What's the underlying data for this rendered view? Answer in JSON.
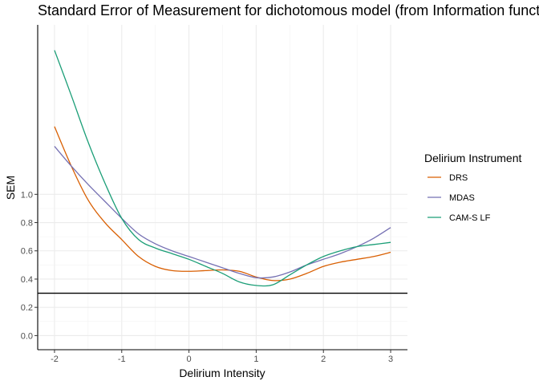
{
  "chart_data": {
    "type": "line",
    "title": "Standard Error of Measurement for dichotomous model (from Information function)",
    "xlabel": "Delirium Intensity",
    "ylabel": "SEM",
    "xlim": [
      -2.25,
      3.25
    ],
    "ylim": [
      -0.1,
      2.2
    ],
    "xticks": [
      -2,
      -1,
      0,
      1,
      2,
      3
    ],
    "xtick_labels": [
      "-2",
      "-1",
      "0",
      "1",
      "2",
      "3"
    ],
    "yticks": [
      0.0,
      0.2,
      0.4,
      0.6,
      0.8,
      1.0
    ],
    "ytick_labels": [
      "0.0",
      "0.2",
      "0.4",
      "0.6",
      "0.8",
      "1.0"
    ],
    "grid": true,
    "reference_line": {
      "orientation": "horizontal",
      "y": 0.3,
      "color": "#000000"
    },
    "legend": {
      "title": "Delirium Instrument",
      "placement": "right"
    },
    "series": [
      {
        "name": "DRS",
        "color": "#D95F02",
        "x": [
          -2,
          -1.75,
          -1.5,
          -1.25,
          -1,
          -0.75,
          -0.5,
          -0.25,
          0,
          0.25,
          0.5,
          0.75,
          1,
          1.25,
          1.5,
          1.75,
          2,
          2.25,
          2.5,
          2.75,
          3
        ],
        "y": [
          1.48,
          1.2,
          0.96,
          0.8,
          0.68,
          0.56,
          0.49,
          0.46,
          0.455,
          0.46,
          0.465,
          0.455,
          0.415,
          0.39,
          0.4,
          0.44,
          0.49,
          0.52,
          0.54,
          0.56,
          0.59
        ]
      },
      {
        "name": "MDAS",
        "color": "#7570B3",
        "x": [
          -2,
          -1.75,
          -1.5,
          -1.25,
          -1,
          -0.75,
          -0.5,
          -0.25,
          0,
          0.25,
          0.5,
          0.75,
          1,
          1.25,
          1.5,
          1.75,
          2,
          2.25,
          2.5,
          2.75,
          3
        ],
        "y": [
          1.34,
          1.2,
          1.07,
          0.95,
          0.83,
          0.72,
          0.65,
          0.6,
          0.56,
          0.52,
          0.48,
          0.44,
          0.41,
          0.415,
          0.45,
          0.5,
          0.54,
          0.58,
          0.63,
          0.69,
          0.765
        ]
      },
      {
        "name": "CAM-S LF",
        "color": "#1B9E77",
        "x": [
          -2,
          -1.75,
          -1.5,
          -1.25,
          -1,
          -0.75,
          -0.5,
          -0.25,
          0,
          0.25,
          0.5,
          0.75,
          1,
          1.25,
          1.5,
          1.75,
          2,
          2.25,
          2.5,
          2.75,
          3
        ],
        "y": [
          2.02,
          1.7,
          1.37,
          1.08,
          0.83,
          0.68,
          0.62,
          0.58,
          0.54,
          0.49,
          0.44,
          0.38,
          0.355,
          0.36,
          0.43,
          0.5,
          0.56,
          0.6,
          0.63,
          0.645,
          0.66
        ]
      }
    ]
  }
}
